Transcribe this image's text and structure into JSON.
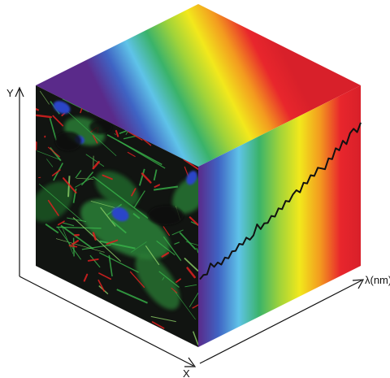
{
  "diagram": {
    "axes": {
      "x_label": "X",
      "y_label": "Y",
      "lambda_label": "λ(nm)"
    },
    "spectrum_colors": [
      "#5a2a8a",
      "#3f64c4",
      "#5fc3e8",
      "#3ab36a",
      "#9fd33a",
      "#f2e81c",
      "#f39a1f",
      "#e8262c",
      "#d8202a"
    ],
    "spectrum_line_color": "#111111",
    "image_face": {
      "subject": "fluorescence-micrograph-of-cells",
      "background_color": "#111411",
      "cytoskeleton_color": "#39b54a",
      "membrane_color": "#e02020",
      "nucleus_color": "#2b45c8"
    },
    "spectrum_trace": [
      0.04,
      0.06,
      0.05,
      0.12,
      0.08,
      0.1,
      0.07,
      0.11,
      0.09,
      0.13,
      0.12,
      0.16,
      0.14,
      0.18,
      0.15,
      0.17,
      0.24,
      0.19,
      0.22,
      0.21,
      0.25,
      0.23,
      0.28,
      0.26,
      0.31,
      0.29,
      0.33,
      0.35,
      0.32,
      0.38,
      0.36,
      0.41,
      0.39,
      0.44,
      0.42,
      0.4,
      0.47,
      0.45,
      0.52,
      0.49,
      0.55,
      0.51,
      0.58,
      0.6,
      0.56,
      0.62
    ]
  }
}
